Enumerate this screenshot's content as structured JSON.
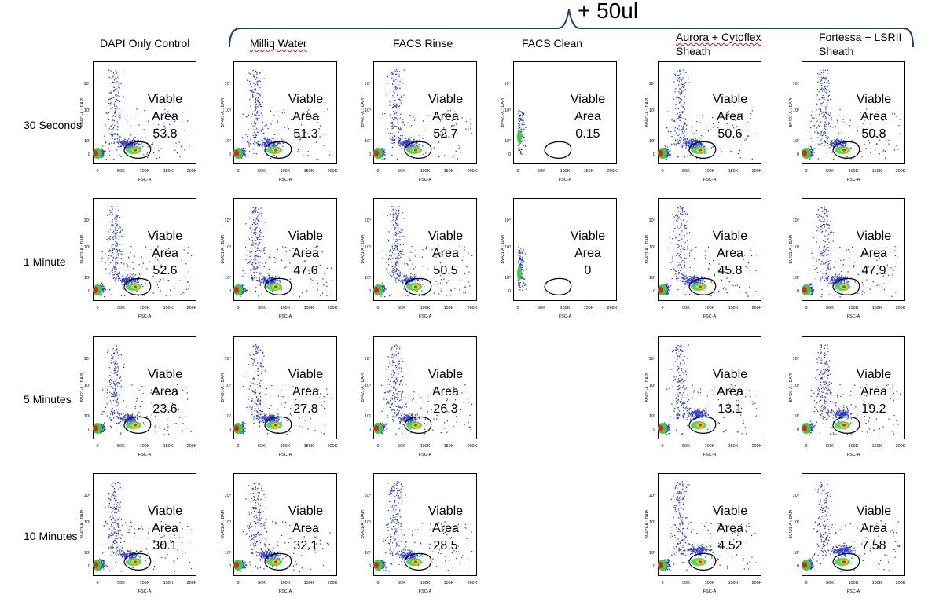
{
  "header": {
    "addition_label": "+ 50ul",
    "columns": [
      {
        "line1": "DAPI Only Control",
        "line2": ""
      },
      {
        "line1": "Milliq Water",
        "line2": ""
      },
      {
        "line1": "FACS Rinse",
        "line2": ""
      },
      {
        "line1": "FACS Clean",
        "line2": ""
      },
      {
        "line1": "Aurora + Cytoflex",
        "line2": "Sheath"
      },
      {
        "line1": "Fortessa + LSRII",
        "line2": "Sheath"
      }
    ]
  },
  "rows": [
    "30 Seconds",
    "1 Minute",
    "5 Minutes",
    "10 Minutes"
  ],
  "gate_label": "Viable Area",
  "axis": {
    "xlabel": "FSC-A",
    "ylabel": "BV421-A :: DAPI",
    "xticks": [
      "0",
      "50K",
      "100K",
      "150K",
      "200K"
    ],
    "yticks": [
      "0",
      "10²",
      "10³",
      "10⁴"
    ]
  },
  "colors": {
    "dots": "#2f3fd6",
    "dense_green": "#3ccf3c",
    "dense_yellow": "#e8d020",
    "dense_red": "#e32020",
    "gate": "#000000",
    "bracket": "#1f3b6e"
  },
  "chart_data": {
    "type": "scatter",
    "x_axis": "FSC-A",
    "y_axis": "BV421-A :: DAPI",
    "series": [
      "DAPI Only Control",
      "Milliq Water",
      "FACS Rinse",
      "FACS Clean",
      "Aurora + Cytoflex Sheath",
      "Fortessa + LSRII Sheath"
    ],
    "timepoints": [
      "30 Seconds",
      "1 Minute",
      "5 Minutes",
      "10 Minutes"
    ],
    "viable_area_percent": [
      [
        "53.8",
        "51.3",
        "52.7",
        "0.15",
        "50.6",
        "50.8"
      ],
      [
        "52.6",
        "47.6",
        "50.5",
        "0",
        "45.8",
        "47.9"
      ],
      [
        "23.6",
        "27.8",
        "26.3",
        null,
        "13.1",
        "19.2"
      ],
      [
        "30.1",
        "32.1",
        "28.5",
        null,
        "4.52",
        "7.58"
      ]
    ]
  }
}
